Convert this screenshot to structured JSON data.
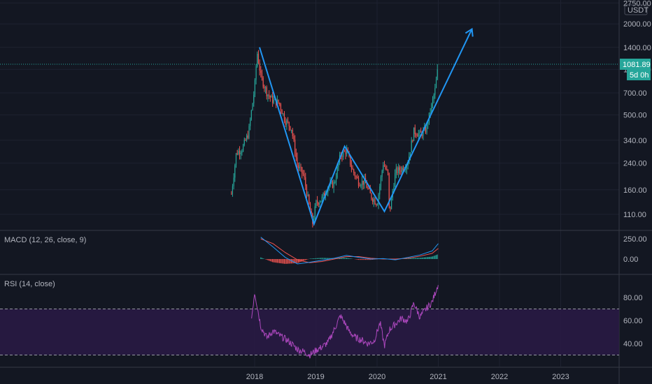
{
  "chart_data": {
    "type": "candlestick",
    "currency_label": "USDT",
    "colors": {
      "bg": "#131722",
      "grid": "#1e2230",
      "text": "#b2b5be",
      "up": "#26a69a",
      "down": "#ef5350",
      "drawing": "#2196f3",
      "price_line": "#26a69a",
      "rsi": "#ab47bc",
      "rsi_band": "#2a1a45",
      "macd_line": "#2196f3",
      "signal_line": "#ef5350"
    },
    "x_ticks": [
      {
        "label": "2018",
        "t": 2018.0
      },
      {
        "label": "2019",
        "t": 2019.0
      },
      {
        "label": "2020",
        "t": 2020.0
      },
      {
        "label": "2021",
        "t": 2021.0
      },
      {
        "label": "2022",
        "t": 2022.0
      },
      {
        "label": "2023",
        "t": 2023.0
      }
    ],
    "price_axis": {
      "scale": "log",
      "ticks": [
        "2750.00",
        "2000.00",
        "1400.00",
        "1000.00",
        "700.00",
        "500.00",
        "340.00",
        "240.00",
        "160.00",
        "110.00"
      ],
      "last_price": "1081.89",
      "countdown": "5d 0h"
    },
    "price_series": [
      [
        2017.62,
        150
      ],
      [
        2017.7,
        280
      ],
      [
        2017.8,
        300
      ],
      [
        2017.9,
        380
      ],
      [
        2018.0,
        760
      ],
      [
        2018.04,
        1300
      ],
      [
        2018.1,
        900
      ],
      [
        2018.2,
        700
      ],
      [
        2018.3,
        620
      ],
      [
        2018.4,
        600
      ],
      [
        2018.5,
        460
      ],
      [
        2018.6,
        410
      ],
      [
        2018.7,
        230
      ],
      [
        2018.8,
        200
      ],
      [
        2018.9,
        120
      ],
      [
        2018.95,
        95
      ],
      [
        2019.0,
        130
      ],
      [
        2019.1,
        140
      ],
      [
        2019.2,
        170
      ],
      [
        2019.3,
        175
      ],
      [
        2019.4,
        270
      ],
      [
        2019.5,
        290
      ],
      [
        2019.6,
        215
      ],
      [
        2019.7,
        180
      ],
      [
        2019.8,
        180
      ],
      [
        2019.9,
        145
      ],
      [
        2020.0,
        130
      ],
      [
        2020.1,
        240
      ],
      [
        2020.18,
        200
      ],
      [
        2020.2,
        110
      ],
      [
        2020.3,
        210
      ],
      [
        2020.4,
        220
      ],
      [
        2020.5,
        240
      ],
      [
        2020.6,
        390
      ],
      [
        2020.7,
        370
      ],
      [
        2020.8,
        400
      ],
      [
        2020.9,
        600
      ],
      [
        2020.95,
        740
      ],
      [
        2021.0,
        1081.89
      ]
    ],
    "drawing_path": [
      [
        2018.08,
        1400
      ],
      [
        2018.97,
        95
      ],
      [
        2019.47,
        310
      ],
      [
        2020.12,
        115
      ],
      [
        2021.55,
        1850
      ]
    ],
    "macd": {
      "label": "MACD (12, 26, close, 9)",
      "ticks": [
        "250.00",
        "0.00"
      ],
      "range": [
        -70,
        310
      ],
      "macd_line": [
        [
          2018.1,
          270
        ],
        [
          2018.3,
          150
        ],
        [
          2018.5,
          20
        ],
        [
          2018.7,
          -60
        ],
        [
          2018.9,
          -40
        ],
        [
          2019.1,
          -15
        ],
        [
          2019.3,
          10
        ],
        [
          2019.5,
          45
        ],
        [
          2019.7,
          20
        ],
        [
          2019.9,
          0
        ],
        [
          2020.1,
          5
        ],
        [
          2020.3,
          -10
        ],
        [
          2020.5,
          20
        ],
        [
          2020.7,
          50
        ],
        [
          2020.9,
          100
        ],
        [
          2021.0,
          190
        ]
      ],
      "signal_line": [
        [
          2018.1,
          250
        ],
        [
          2018.3,
          190
        ],
        [
          2018.5,
          80
        ],
        [
          2018.7,
          -10
        ],
        [
          2018.9,
          -45
        ],
        [
          2019.1,
          -30
        ],
        [
          2019.3,
          0
        ],
        [
          2019.5,
          30
        ],
        [
          2019.7,
          30
        ],
        [
          2019.9,
          10
        ],
        [
          2020.1,
          0
        ],
        [
          2020.3,
          0
        ],
        [
          2020.5,
          10
        ],
        [
          2020.7,
          35
        ],
        [
          2020.9,
          70
        ],
        [
          2021.0,
          130
        ]
      ]
    },
    "rsi": {
      "label": "RSI (14, close)",
      "ticks": [
        "80.00",
        "60.00",
        "40.00"
      ],
      "band": [
        30,
        70
      ],
      "range": [
        24,
        98
      ],
      "values": [
        [
          2017.95,
          62
        ],
        [
          2018.0,
          85
        ],
        [
          2018.05,
          70
        ],
        [
          2018.1,
          55
        ],
        [
          2018.2,
          45
        ],
        [
          2018.3,
          51
        ],
        [
          2018.4,
          47
        ],
        [
          2018.5,
          44
        ],
        [
          2018.6,
          40
        ],
        [
          2018.7,
          35
        ],
        [
          2018.8,
          33
        ],
        [
          2018.9,
          30
        ],
        [
          2019.0,
          34
        ],
        [
          2019.1,
          37
        ],
        [
          2019.2,
          41
        ],
        [
          2019.3,
          52
        ],
        [
          2019.4,
          64
        ],
        [
          2019.47,
          58
        ],
        [
          2019.55,
          50
        ],
        [
          2019.65,
          45
        ],
        [
          2019.75,
          43
        ],
        [
          2019.85,
          40
        ],
        [
          2019.95,
          42
        ],
        [
          2020.05,
          58
        ],
        [
          2020.12,
          38
        ],
        [
          2020.2,
          52
        ],
        [
          2020.3,
          57
        ],
        [
          2020.4,
          62
        ],
        [
          2020.5,
          59
        ],
        [
          2020.6,
          75
        ],
        [
          2020.7,
          63
        ],
        [
          2020.8,
          70
        ],
        [
          2020.9,
          76
        ],
        [
          2021.0,
          92
        ]
      ]
    }
  }
}
